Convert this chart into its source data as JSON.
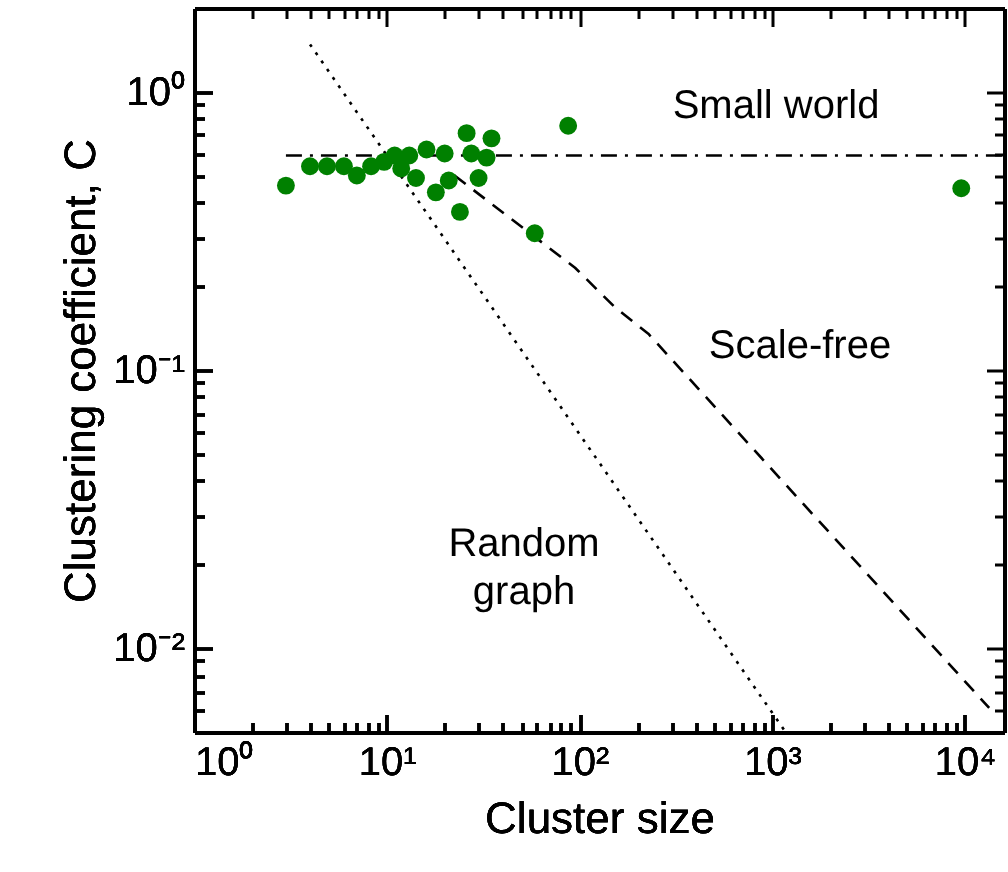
{
  "chart_data": {
    "type": "scatter",
    "xlabel": "Cluster size",
    "ylabel": "Clustering coefficient, C",
    "log": "xy",
    "grid": false,
    "xlim": [
      1,
      16000
    ],
    "ylim": [
      0.005,
      2
    ],
    "xticks": [
      {
        "value": 1,
        "label": "10⁰"
      },
      {
        "value": 2,
        "label": null
      },
      {
        "value": 3,
        "label": null
      },
      {
        "value": 4,
        "label": null
      },
      {
        "value": 5,
        "label": null
      },
      {
        "value": 6,
        "label": null
      },
      {
        "value": 7,
        "label": null
      },
      {
        "value": 8,
        "label": null
      },
      {
        "value": 9,
        "label": null
      },
      {
        "value": 10,
        "label": "10¹"
      },
      {
        "value": 20,
        "label": null
      },
      {
        "value": 30,
        "label": null
      },
      {
        "value": 40,
        "label": null
      },
      {
        "value": 50,
        "label": null
      },
      {
        "value": 60,
        "label": null
      },
      {
        "value": 70,
        "label": null
      },
      {
        "value": 80,
        "label": null
      },
      {
        "value": 90,
        "label": null
      },
      {
        "value": 100,
        "label": "10²"
      },
      {
        "value": 200,
        "label": null
      },
      {
        "value": 300,
        "label": null
      },
      {
        "value": 400,
        "label": null
      },
      {
        "value": 500,
        "label": null
      },
      {
        "value": 600,
        "label": null
      },
      {
        "value": 700,
        "label": null
      },
      {
        "value": 800,
        "label": null
      },
      {
        "value": 900,
        "label": null
      },
      {
        "value": 1000,
        "label": "10³"
      },
      {
        "value": 2000,
        "label": null
      },
      {
        "value": 3000,
        "label": null
      },
      {
        "value": 4000,
        "label": null
      },
      {
        "value": 5000,
        "label": null
      },
      {
        "value": 6000,
        "label": null
      },
      {
        "value": 7000,
        "label": null
      },
      {
        "value": 8000,
        "label": null
      },
      {
        "value": 9000,
        "label": null
      },
      {
        "value": 10000,
        "label": "10⁴"
      }
    ],
    "yticks": [
      {
        "value": 0.006,
        "label": null
      },
      {
        "value": 0.007,
        "label": null
      },
      {
        "value": 0.008,
        "label": null
      },
      {
        "value": 0.009,
        "label": null
      },
      {
        "value": 0.01,
        "label": "10⁻²"
      },
      {
        "value": 0.02,
        "label": null
      },
      {
        "value": 0.03,
        "label": null
      },
      {
        "value": 0.04,
        "label": null
      },
      {
        "value": 0.05,
        "label": null
      },
      {
        "value": 0.06,
        "label": null
      },
      {
        "value": 0.07,
        "label": null
      },
      {
        "value": 0.08,
        "label": null
      },
      {
        "value": 0.09,
        "label": null
      },
      {
        "value": 0.1,
        "label": "10⁻¹"
      },
      {
        "value": 0.2,
        "label": null
      },
      {
        "value": 0.3,
        "label": null
      },
      {
        "value": 0.4,
        "label": null
      },
      {
        "value": 0.5,
        "label": null
      },
      {
        "value": 0.6,
        "label": null
      },
      {
        "value": 0.7,
        "label": null
      },
      {
        "value": 0.8,
        "label": null
      },
      {
        "value": 0.9,
        "label": null
      },
      {
        "value": 1,
        "label": "10⁰"
      }
    ],
    "series": [
      {
        "type": "line",
        "line_style": "dotted",
        "color": "#000000",
        "x": [
          4,
          1175
        ],
        "values": [
          1.48,
          0.005
        ]
      },
      {
        "type": "line",
        "line_style": "dashed",
        "color": "#000000",
        "x": [
          22.5,
          95,
          153,
          228,
          13400
        ],
        "values": [
          0.5,
          0.233,
          0.168,
          0.135,
          0.0061
        ]
      },
      {
        "type": "line",
        "line_style": "dashdot",
        "color": "#000000",
        "x": [
          3,
          16000
        ],
        "values": [
          0.59,
          0.59
        ]
      },
      {
        "marker": "circle",
        "color": "#008000",
        "x": [
          3,
          4,
          4.9,
          6,
          7,
          8.3,
          9.7,
          11,
          11.9,
          13.1,
          14.2,
          16.1,
          18,
          20,
          21,
          24,
          26,
          27.5,
          30,
          33,
          35,
          58.7,
          87.5,
          9600
        ],
        "values": [
          0.46,
          0.54,
          0.54,
          0.54,
          0.5,
          0.54,
          0.56,
          0.59,
          0.53,
          0.59,
          0.49,
          0.62,
          0.435,
          0.6,
          0.48,
          0.37,
          0.71,
          0.6,
          0.49,
          0.58,
          0.68,
          0.31,
          0.755,
          0.45
        ]
      }
    ],
    "annotations": [
      "Small world",
      "Scale-free",
      "Random\ngraph"
    ]
  }
}
